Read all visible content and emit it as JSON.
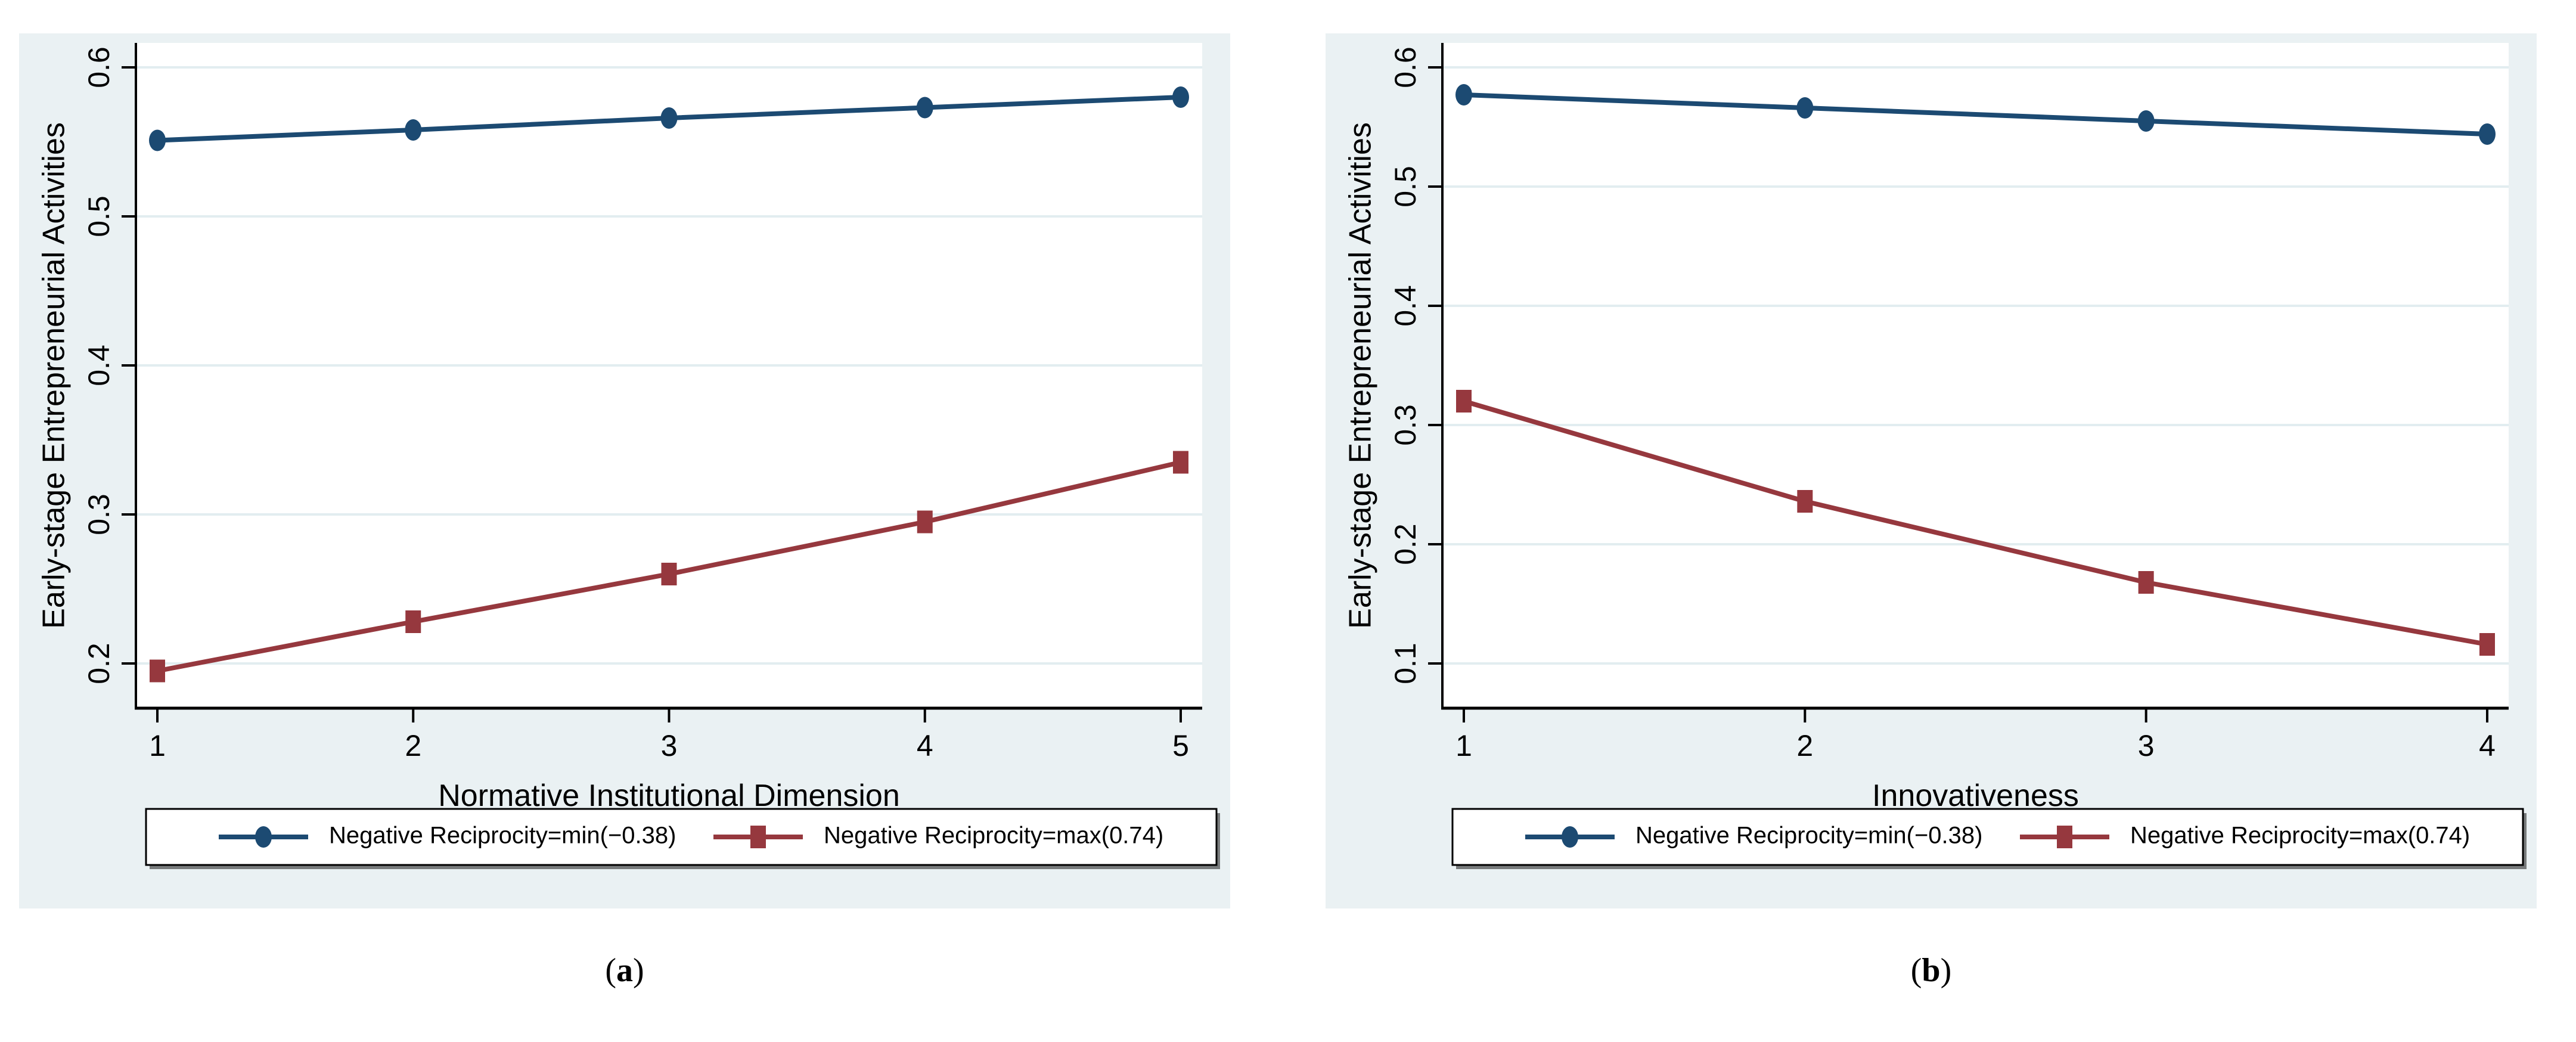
{
  "figure": {
    "panels": [
      {
        "id": "a",
        "caption": {
          "open": "(",
          "letter": "a",
          "close": ")"
        }
      },
      {
        "id": "b",
        "caption": {
          "open": "(",
          "letter": "b",
          "close": ")"
        }
      }
    ]
  },
  "colors": {
    "panel_bg": "#eaf1f3",
    "plot_bg": "#ffffff",
    "gridline": "#e2edf0",
    "axis": "#000000",
    "text": "#000000",
    "navy_series": "#1c4a72",
    "maroon_series": "#96383e",
    "legend_bg": "#ffffff",
    "legend_border": "#000000"
  },
  "chart_data": [
    {
      "type": "line",
      "title": "",
      "xlabel": "Normative Institutional Dimension",
      "ylabel": "Early-stage Entrepreneurial Activities",
      "x": [
        1,
        2,
        3,
        4,
        5
      ],
      "x_tick_labels": [
        "1",
        "2",
        "3",
        "4",
        "5"
      ],
      "y_ticks": [
        0.2,
        0.3,
        0.4,
        0.5,
        0.6
      ],
      "y_tick_labels": [
        "0.2",
        "0.3",
        "0.4",
        "0.5",
        "0.6"
      ],
      "ylim": [
        0.157,
        0.615
      ],
      "grid": true,
      "legend_position": "bottom",
      "series": [
        {
          "name": "Negative Reciprocity=min(−0.38)",
          "marker": "circle",
          "color": "#1c4a72",
          "values": [
            0.551,
            0.558,
            0.566,
            0.573,
            0.58
          ]
        },
        {
          "name": "Negative Reciprocity=max(0.74)",
          "marker": "square",
          "color": "#96383e",
          "values": [
            0.195,
            0.228,
            0.26,
            0.295,
            0.335
          ]
        }
      ]
    },
    {
      "type": "line",
      "title": "",
      "xlabel": "Innovativeness",
      "ylabel": "Early-stage Entrepreneurial Activities",
      "x": [
        1,
        2,
        3,
        4
      ],
      "x_tick_labels": [
        "1",
        "2",
        "3",
        "4"
      ],
      "y_ticks": [
        0.1,
        0.2,
        0.3,
        0.4,
        0.5,
        0.6
      ],
      "y_tick_labels": [
        "0.1",
        "0.2",
        "0.3",
        "0.4",
        "0.5",
        "0.6"
      ],
      "ylim": [
        0.085,
        0.615
      ],
      "grid": true,
      "legend_position": "bottom",
      "series": [
        {
          "name": "Negative Reciprocity=min(−0.38)",
          "marker": "circle",
          "color": "#1c4a72",
          "values": [
            0.577,
            0.566,
            0.555,
            0.544
          ]
        },
        {
          "name": "Negative Reciprocity=max(0.74)",
          "marker": "square",
          "color": "#96383e",
          "values": [
            0.32,
            0.236,
            0.168,
            0.116
          ]
        }
      ]
    }
  ]
}
